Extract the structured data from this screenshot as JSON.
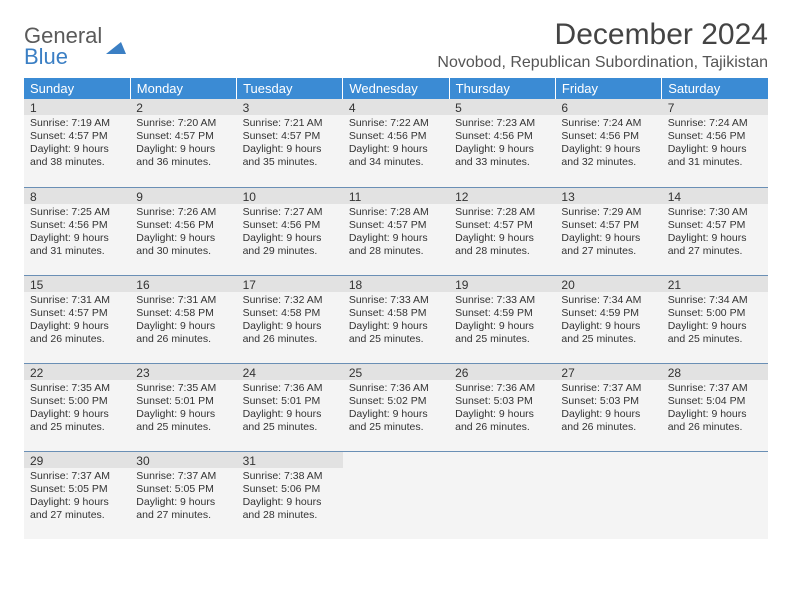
{
  "brand": {
    "part1": "General",
    "part2": "Blue"
  },
  "title": "December 2024",
  "location": "Novobod, Republican Subordination, Tajikistan",
  "colors": {
    "header_bg": "#3b8bd4",
    "header_text": "#ffffff",
    "row_border": "#6a8fb5",
    "cell_bg": "#f4f4f4",
    "daynum_bg": "#e2e2e2",
    "logo_blue": "#3b7fc4"
  },
  "daysOfWeek": [
    "Sunday",
    "Monday",
    "Tuesday",
    "Wednesday",
    "Thursday",
    "Friday",
    "Saturday"
  ],
  "weeks": [
    [
      {
        "n": "1",
        "sr": "7:19 AM",
        "ss": "4:57 PM",
        "dl": "9 hours and 38 minutes."
      },
      {
        "n": "2",
        "sr": "7:20 AM",
        "ss": "4:57 PM",
        "dl": "9 hours and 36 minutes."
      },
      {
        "n": "3",
        "sr": "7:21 AM",
        "ss": "4:57 PM",
        "dl": "9 hours and 35 minutes."
      },
      {
        "n": "4",
        "sr": "7:22 AM",
        "ss": "4:56 PM",
        "dl": "9 hours and 34 minutes."
      },
      {
        "n": "5",
        "sr": "7:23 AM",
        "ss": "4:56 PM",
        "dl": "9 hours and 33 minutes."
      },
      {
        "n": "6",
        "sr": "7:24 AM",
        "ss": "4:56 PM",
        "dl": "9 hours and 32 minutes."
      },
      {
        "n": "7",
        "sr": "7:24 AM",
        "ss": "4:56 PM",
        "dl": "9 hours and 31 minutes."
      }
    ],
    [
      {
        "n": "8",
        "sr": "7:25 AM",
        "ss": "4:56 PM",
        "dl": "9 hours and 31 minutes."
      },
      {
        "n": "9",
        "sr": "7:26 AM",
        "ss": "4:56 PM",
        "dl": "9 hours and 30 minutes."
      },
      {
        "n": "10",
        "sr": "7:27 AM",
        "ss": "4:56 PM",
        "dl": "9 hours and 29 minutes."
      },
      {
        "n": "11",
        "sr": "7:28 AM",
        "ss": "4:57 PM",
        "dl": "9 hours and 28 minutes."
      },
      {
        "n": "12",
        "sr": "7:28 AM",
        "ss": "4:57 PM",
        "dl": "9 hours and 28 minutes."
      },
      {
        "n": "13",
        "sr": "7:29 AM",
        "ss": "4:57 PM",
        "dl": "9 hours and 27 minutes."
      },
      {
        "n": "14",
        "sr": "7:30 AM",
        "ss": "4:57 PM",
        "dl": "9 hours and 27 minutes."
      }
    ],
    [
      {
        "n": "15",
        "sr": "7:31 AM",
        "ss": "4:57 PM",
        "dl": "9 hours and 26 minutes."
      },
      {
        "n": "16",
        "sr": "7:31 AM",
        "ss": "4:58 PM",
        "dl": "9 hours and 26 minutes."
      },
      {
        "n": "17",
        "sr": "7:32 AM",
        "ss": "4:58 PM",
        "dl": "9 hours and 26 minutes."
      },
      {
        "n": "18",
        "sr": "7:33 AM",
        "ss": "4:58 PM",
        "dl": "9 hours and 25 minutes."
      },
      {
        "n": "19",
        "sr": "7:33 AM",
        "ss": "4:59 PM",
        "dl": "9 hours and 25 minutes."
      },
      {
        "n": "20",
        "sr": "7:34 AM",
        "ss": "4:59 PM",
        "dl": "9 hours and 25 minutes."
      },
      {
        "n": "21",
        "sr": "7:34 AM",
        "ss": "5:00 PM",
        "dl": "9 hours and 25 minutes."
      }
    ],
    [
      {
        "n": "22",
        "sr": "7:35 AM",
        "ss": "5:00 PM",
        "dl": "9 hours and 25 minutes."
      },
      {
        "n": "23",
        "sr": "7:35 AM",
        "ss": "5:01 PM",
        "dl": "9 hours and 25 minutes."
      },
      {
        "n": "24",
        "sr": "7:36 AM",
        "ss": "5:01 PM",
        "dl": "9 hours and 25 minutes."
      },
      {
        "n": "25",
        "sr": "7:36 AM",
        "ss": "5:02 PM",
        "dl": "9 hours and 25 minutes."
      },
      {
        "n": "26",
        "sr": "7:36 AM",
        "ss": "5:03 PM",
        "dl": "9 hours and 26 minutes."
      },
      {
        "n": "27",
        "sr": "7:37 AM",
        "ss": "5:03 PM",
        "dl": "9 hours and 26 minutes."
      },
      {
        "n": "28",
        "sr": "7:37 AM",
        "ss": "5:04 PM",
        "dl": "9 hours and 26 minutes."
      }
    ],
    [
      {
        "n": "29",
        "sr": "7:37 AM",
        "ss": "5:05 PM",
        "dl": "9 hours and 27 minutes."
      },
      {
        "n": "30",
        "sr": "7:37 AM",
        "ss": "5:05 PM",
        "dl": "9 hours and 27 minutes."
      },
      {
        "n": "31",
        "sr": "7:38 AM",
        "ss": "5:06 PM",
        "dl": "9 hours and 28 minutes."
      },
      null,
      null,
      null,
      null
    ]
  ],
  "labels": {
    "sunrise": "Sunrise:",
    "sunset": "Sunset:",
    "daylight": "Daylight:"
  }
}
